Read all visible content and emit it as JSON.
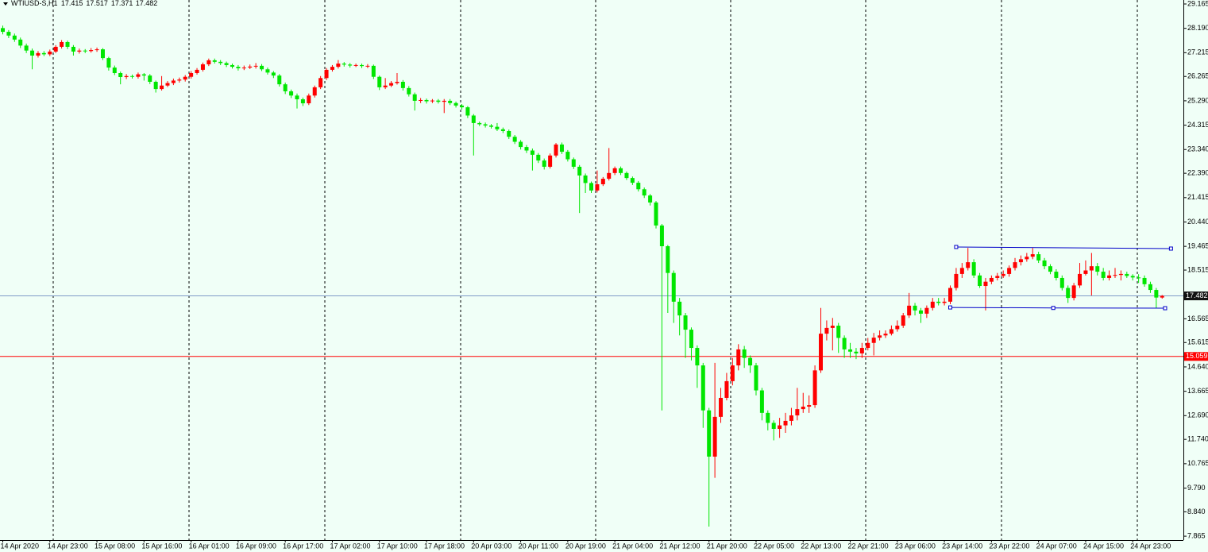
{
  "chart_data": {
    "type": "candlestick",
    "symbol": "WTIUSD-S,H1",
    "up_color": "#ff0000",
    "down_color": "#00e600",
    "categories": [
      "14 Apr 2020",
      null,
      null,
      null,
      null,
      null,
      null,
      null,
      "14 Apr 23:00",
      null,
      null,
      null,
      null,
      null,
      null,
      null,
      "15 Apr 08:00",
      null,
      null,
      null,
      null,
      null,
      null,
      null,
      "15 Apr 16:00",
      null,
      null,
      null,
      null,
      null,
      null,
      null,
      "16 Apr 01:00",
      null,
      null,
      null,
      null,
      null,
      null,
      null,
      "16 Apr 09:00",
      null,
      null,
      null,
      null,
      null,
      null,
      null,
      "16 Apr 17:00",
      null,
      null,
      null,
      null,
      null,
      null,
      null,
      "17 Apr 02:00",
      null,
      null,
      null,
      null,
      null,
      null,
      null,
      "17 Apr 10:00",
      null,
      null,
      null,
      null,
      null,
      null,
      null,
      "17 Apr 18:00",
      null,
      null,
      null,
      null,
      null,
      null,
      null,
      "20 Apr 03:00",
      null,
      null,
      null,
      null,
      null,
      null,
      null,
      "20 Apr 11:00",
      null,
      null,
      null,
      null,
      null,
      null,
      null,
      "20 Apr 19:00",
      null,
      null,
      null,
      null,
      null,
      null,
      null,
      "21 Apr 04:00",
      null,
      null,
      null,
      null,
      null,
      null,
      null,
      "21 Apr 12:00",
      null,
      null,
      null,
      null,
      null,
      null,
      null,
      "21 Apr 20:00",
      null,
      null,
      null,
      null,
      null,
      null,
      null,
      "22 Apr 05:00",
      null,
      null,
      null,
      null,
      null,
      null,
      null,
      "22 Apr 13:00",
      null,
      null,
      null,
      null,
      null,
      null,
      null,
      "22 Apr 21:00",
      null,
      null,
      null,
      null,
      null,
      null,
      null,
      "23 Apr 06:00",
      null,
      null,
      null,
      null,
      null,
      null,
      null,
      "23 Apr 14:00",
      null,
      null,
      null,
      null,
      null,
      null,
      null,
      "23 Apr 22:00",
      null,
      null,
      null,
      null,
      null,
      null,
      null,
      "24 Apr 07:00",
      null,
      null,
      null,
      null,
      null,
      null,
      null,
      "24 Apr 15:00",
      null,
      null,
      null,
      null,
      null,
      null,
      null,
      "24 Apr 23:00",
      null,
      null,
      null,
      null,
      null
    ],
    "open": [
      28.2,
      28.05,
      27.9,
      27.74,
      27.5,
      27.3,
      27.1,
      27.2,
      27.15,
      27.26,
      27.45,
      27.64,
      27.45,
      27.26,
      27.3,
      27.28,
      27.32,
      27.35,
      27.0,
      26.62,
      26.4,
      26.24,
      26.28,
      26.25,
      26.35,
      26.3,
      26.05,
      25.76,
      25.9,
      26.0,
      26.1,
      26.14,
      26.25,
      26.4,
      26.53,
      26.75,
      26.91,
      26.85,
      26.8,
      26.72,
      26.65,
      26.59,
      26.62,
      26.66,
      26.69,
      26.55,
      26.42,
      26.3,
      25.95,
      25.67,
      25.5,
      25.35,
      25.19,
      25.5,
      25.83,
      26.2,
      26.53,
      26.65,
      26.78,
      26.74,
      26.7,
      26.72,
      26.68,
      26.69,
      26.25,
      25.83,
      25.9,
      26.0,
      26.05,
      25.8,
      25.55,
      25.29,
      25.32,
      25.27,
      25.3,
      25.25,
      25.29,
      25.2,
      25.1,
      25.03,
      24.7,
      24.4,
      24.35,
      24.3,
      24.25,
      24.15,
      24.08,
      23.85,
      23.65,
      23.44,
      23.3,
      23.13,
      22.9,
      22.65,
      23.1,
      23.54,
      23.25,
      22.95,
      22.65,
      22.3,
      22.0,
      21.7,
      21.95,
      22.17,
      22.4,
      22.59,
      22.4,
      22.2,
      22.01,
      21.75,
      21.5,
      21.22,
      20.3,
      19.47,
      18.4,
      17.25,
      16.7,
      16.13,
      15.4,
      14.7,
      12.9,
      11.05,
      12.64,
      13.4,
      14.07,
      14.7,
      15.34,
      15.0,
      14.7,
      13.7,
      12.8,
      12.4,
      12.16,
      12.3,
      12.48,
      12.7,
      12.95,
      13.05,
      13.11,
      14.5,
      15.97,
      16.2,
      16.29,
      15.8,
      15.34,
      15.25,
      15.18,
      15.4,
      15.6,
      15.81,
      15.9,
      15.97,
      16.15,
      16.29,
      16.7,
      17.09,
      16.9,
      16.77,
      17.0,
      17.25,
      17.2,
      17.25,
      17.8,
      18.36,
      18.6,
      18.83,
      18.3,
      17.88,
      18.05,
      18.2,
      18.28,
      18.36,
      18.6,
      18.83,
      18.95,
      19.05,
      19.15,
      18.9,
      18.67,
      18.45,
      18.2,
      17.8,
      17.4,
      17.9,
      18.36,
      18.5,
      18.67,
      18.45,
      18.2,
      18.3,
      18.32,
      18.36,
      18.28,
      18.22,
      18.2,
      17.95,
      17.72,
      17.415
    ],
    "high": [
      28.3,
      28.12,
      27.98,
      27.82,
      27.58,
      27.38,
      27.28,
      27.28,
      27.34,
      27.52,
      27.72,
      27.7,
      27.52,
      27.38,
      27.36,
      27.4,
      27.42,
      27.4,
      27.05,
      26.7,
      26.46,
      26.36,
      26.34,
      26.42,
      26.4,
      26.36,
      26.1,
      26.28,
      26.08,
      26.18,
      26.22,
      26.32,
      26.48,
      26.6,
      26.82,
      26.98,
      26.98,
      26.92,
      26.86,
      26.78,
      26.72,
      26.7,
      26.74,
      26.8,
      26.76,
      26.62,
      26.48,
      26.36,
      26.02,
      25.74,
      25.58,
      25.42,
      25.58,
      25.9,
      26.28,
      26.6,
      26.72,
      26.92,
      26.84,
      26.8,
      26.78,
      26.78,
      26.76,
      26.74,
      26.3,
      26.2,
      26.08,
      26.4,
      26.12,
      25.88,
      25.62,
      25.4,
      25.38,
      25.36,
      25.36,
      25.36,
      25.36,
      25.26,
      25.16,
      25.08,
      24.76,
      24.46,
      24.42,
      24.36,
      24.4,
      24.22,
      24.14,
      23.92,
      23.72,
      23.52,
      23.38,
      23.2,
      22.98,
      23.18,
      23.6,
      23.62,
      23.32,
      23.02,
      22.72,
      22.38,
      22.06,
      22.5,
      22.24,
      23.4,
      22.66,
      22.66,
      22.46,
      22.26,
      22.08,
      21.82,
      21.56,
      21.28,
      20.36,
      19.52,
      18.5,
      17.4,
      16.8,
      16.22,
      15.5,
      14.8,
      13.0,
      14.8,
      13.8,
      14.4,
      15.0,
      15.55,
      15.48,
      15.1,
      14.8,
      13.8,
      12.9,
      12.5,
      12.6,
      12.8,
      13.0,
      13.8,
      13.6,
      13.5,
      14.7,
      17.0,
      16.5,
      16.6,
      16.4,
      15.9,
      15.6,
      15.4,
      15.6,
      15.8,
      16.0,
      16.1,
      16.1,
      16.3,
      16.5,
      16.8,
      17.6,
      17.2,
      17.0,
      17.1,
      17.4,
      17.4,
      17.4,
      17.9,
      18.6,
      18.8,
      19.4,
      18.95,
      18.4,
      18.2,
      18.3,
      18.4,
      18.5,
      18.7,
      19.0,
      19.1,
      19.2,
      19.4,
      19.25,
      19.0,
      18.75,
      18.55,
      18.3,
      17.9,
      18.0,
      18.8,
      18.9,
      19.2,
      18.8,
      18.6,
      18.5,
      18.6,
      18.5,
      18.45,
      18.35,
      18.35,
      18.3,
      18.05,
      17.8,
      17.517
    ],
    "low": [
      27.95,
      27.8,
      27.65,
      27.4,
      27.2,
      26.55,
      27.02,
      27.08,
      27.08,
      27.2,
      27.38,
      27.36,
      27.1,
      27.18,
      27.2,
      27.22,
      27.25,
      26.92,
      26.5,
      26.32,
      25.95,
      26.16,
      26.18,
      26.18,
      26.1,
      25.96,
      25.62,
      25.7,
      25.84,
      25.92,
      26.02,
      26.06,
      26.18,
      26.34,
      26.46,
      26.68,
      26.78,
      26.72,
      26.64,
      26.58,
      26.5,
      26.52,
      26.56,
      26.58,
      26.48,
      26.34,
      26.2,
      25.86,
      25.56,
      25.4,
      24.98,
      25.08,
      25.12,
      25.42,
      25.76,
      26.12,
      26.46,
      26.58,
      26.66,
      26.62,
      26.64,
      26.6,
      26.6,
      26.16,
      25.72,
      25.76,
      25.84,
      25.94,
      25.7,
      25.46,
      24.9,
      25.2,
      25.18,
      25.2,
      25.18,
      24.8,
      25.12,
      25.02,
      24.94,
      24.6,
      23.1,
      24.28,
      24.22,
      24.18,
      24.08,
      24.0,
      23.76,
      23.56,
      23.34,
      23.2,
      22.5,
      22.8,
      22.54,
      22.58,
      23.02,
      23.16,
      22.86,
      22.56,
      20.8,
      21.6,
      21.6,
      21.62,
      21.88,
      22.1,
      22.32,
      22.32,
      22.12,
      21.92,
      21.66,
      21.4,
      21.1,
      20.18,
      12.9,
      16.8,
      16.4,
      15.9,
      15.0,
      14.9,
      13.8,
      12.2,
      8.25,
      10.2,
      12.4,
      13.3,
      13.9,
      14.5,
      14.6,
      14.4,
      13.5,
      12.5,
      12.1,
      11.7,
      11.8,
      12.0,
      12.3,
      12.5,
      12.8,
      12.8,
      13.0,
      14.4,
      15.7,
      15.3,
      15.2,
      15.0,
      15.0,
      14.95,
      15.0,
      15.3,
      15.1,
      15.7,
      15.8,
      15.9,
      16.05,
      16.2,
      16.6,
      16.7,
      16.4,
      16.6,
      16.9,
      17.1,
      17.1,
      17.15,
      17.7,
      18.2,
      18.5,
      18.2,
      17.8,
      16.9,
      17.95,
      18.1,
      18.2,
      18.25,
      18.5,
      18.7,
      18.85,
      18.95,
      18.8,
      18.55,
      18.35,
      18.1,
      17.7,
      17.2,
      17.3,
      17.8,
      18.3,
      17.5,
      18.3,
      18.1,
      18.1,
      18.2,
      18.1,
      18.2,
      18.1,
      18.0,
      17.85,
      17.6,
      17.0,
      17.371
    ],
    "close": [
      28.05,
      27.9,
      27.74,
      27.5,
      27.3,
      27.1,
      27.2,
      27.15,
      27.26,
      27.45,
      27.64,
      27.45,
      27.26,
      27.3,
      27.28,
      27.32,
      27.35,
      27.0,
      26.62,
      26.4,
      26.24,
      26.28,
      26.25,
      26.35,
      26.3,
      26.05,
      25.76,
      25.9,
      26.0,
      26.1,
      26.14,
      26.25,
      26.4,
      26.53,
      26.75,
      26.91,
      26.85,
      26.8,
      26.72,
      26.65,
      26.59,
      26.62,
      26.66,
      26.69,
      26.55,
      26.42,
      26.3,
      25.95,
      25.67,
      25.5,
      25.35,
      25.19,
      25.5,
      25.83,
      26.2,
      26.53,
      26.65,
      26.78,
      26.74,
      26.7,
      26.72,
      26.68,
      26.69,
      26.25,
      25.83,
      25.9,
      26.0,
      26.05,
      25.8,
      25.55,
      25.29,
      25.32,
      25.27,
      25.3,
      25.25,
      25.29,
      25.2,
      25.1,
      25.03,
      24.7,
      24.4,
      24.35,
      24.3,
      24.25,
      24.15,
      24.08,
      23.85,
      23.65,
      23.44,
      23.3,
      23.13,
      22.9,
      22.65,
      23.1,
      23.54,
      23.25,
      22.95,
      22.65,
      22.3,
      22.0,
      21.7,
      21.95,
      22.17,
      22.4,
      22.59,
      22.4,
      22.2,
      22.01,
      21.75,
      21.5,
      21.22,
      20.3,
      19.47,
      18.4,
      17.25,
      16.7,
      16.13,
      15.4,
      14.7,
      12.9,
      11.05,
      12.64,
      13.4,
      14.07,
      14.7,
      15.34,
      15.0,
      14.7,
      13.7,
      12.8,
      12.4,
      12.16,
      12.3,
      12.48,
      12.7,
      12.95,
      13.05,
      13.11,
      14.5,
      15.97,
      16.2,
      16.29,
      15.8,
      15.34,
      15.25,
      15.18,
      15.4,
      15.6,
      15.81,
      15.9,
      15.97,
      16.15,
      16.29,
      16.7,
      17.09,
      16.9,
      16.77,
      17.0,
      17.25,
      17.2,
      17.25,
      17.8,
      18.36,
      18.6,
      18.83,
      18.3,
      17.88,
      18.05,
      18.2,
      18.28,
      18.36,
      18.6,
      18.83,
      18.95,
      19.05,
      19.15,
      18.9,
      18.67,
      18.45,
      18.2,
      17.8,
      17.4,
      17.9,
      18.36,
      18.5,
      18.67,
      18.45,
      18.2,
      18.3,
      18.32,
      18.36,
      18.28,
      18.22,
      18.2,
      17.95,
      17.72,
      17.415,
      17.482
    ],
    "ylim": [
      7.709,
      29.324
    ],
    "yticks": [
      29.165,
      {
        "value": 28.19,
        "label": "28.190"
      },
      27.215,
      26.265,
      {
        "value": 25.29,
        "label": "25.290"
      },
      24.315,
      {
        "value": 23.34,
        "label": "23.340"
      },
      {
        "value": 22.39,
        "label": "22.390"
      },
      21.415,
      {
        "value": 20.44,
        "label": "20.440"
      },
      19.465,
      18.515,
      16.565,
      15.615,
      {
        "value": 14.64,
        "label": "14.640"
      },
      13.665,
      {
        "value": 12.69,
        "label": "12.690"
      },
      {
        "value": 11.74,
        "label": "11.740"
      },
      10.765,
      {
        "value": 9.79,
        "label": "9.790"
      },
      {
        "value": 8.84,
        "label": "8.840"
      },
      7.865
    ],
    "bid_line_color": "#7f9cc8",
    "hline": {
      "value": 15.059,
      "color": "#ff0000"
    },
    "trendlines": [
      {
        "color": "#0000c8",
        "points": [
          [
            162,
            19.44
          ],
          [
            198.5,
            19.375
          ]
        ]
      },
      {
        "color": "#0000c8",
        "points": [
          [
            161,
            17.02
          ],
          [
            178.5,
            17.0
          ],
          [
            197.5,
            16.99
          ]
        ]
      }
    ]
  }
}
